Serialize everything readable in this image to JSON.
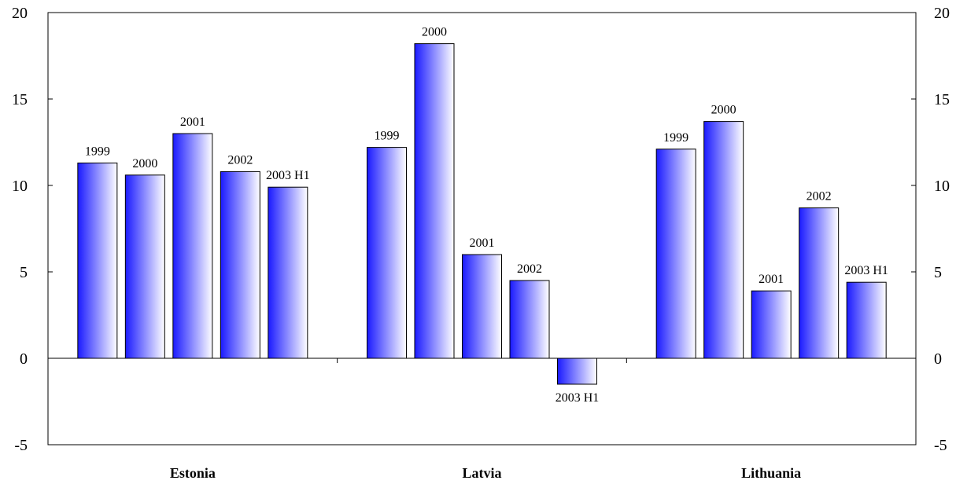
{
  "chart_data": {
    "type": "bar",
    "title": "",
    "xlabel": "",
    "ylabel": "",
    "ylim": [
      -5,
      20
    ],
    "yticks": [
      -5,
      0,
      5,
      10,
      15,
      20
    ],
    "y_axes": "left and right",
    "grid": false,
    "legend": "none",
    "categories": [
      "Estonia",
      "Latvia",
      "Lithuania"
    ],
    "groups": [
      {
        "name": "Estonia",
        "bars": [
          {
            "label": "1999",
            "value": 11.3
          },
          {
            "label": "2000",
            "value": 10.6
          },
          {
            "label": "2001",
            "value": 13.0
          },
          {
            "label": "2002",
            "value": 10.8
          },
          {
            "label": "2003 H1",
            "value": 9.9
          }
        ]
      },
      {
        "name": "Latvia",
        "bars": [
          {
            "label": "1999",
            "value": 12.2
          },
          {
            "label": "2000",
            "value": 18.2
          },
          {
            "label": "2001",
            "value": 6.0
          },
          {
            "label": "2002",
            "value": 4.5
          },
          {
            "label": "2003 H1",
            "value": -1.5
          }
        ]
      },
      {
        "name": "Lithuania",
        "bars": [
          {
            "label": "1999",
            "value": 12.1
          },
          {
            "label": "2000",
            "value": 13.7
          },
          {
            "label": "2001",
            "value": 3.9
          },
          {
            "label": "2002",
            "value": 8.7
          },
          {
            "label": "2003 H1",
            "value": 4.4
          }
        ]
      }
    ],
    "colors": {
      "bar_dark": "#1a1aff",
      "bar_light": "#ffffff",
      "axis": "#000000"
    }
  }
}
